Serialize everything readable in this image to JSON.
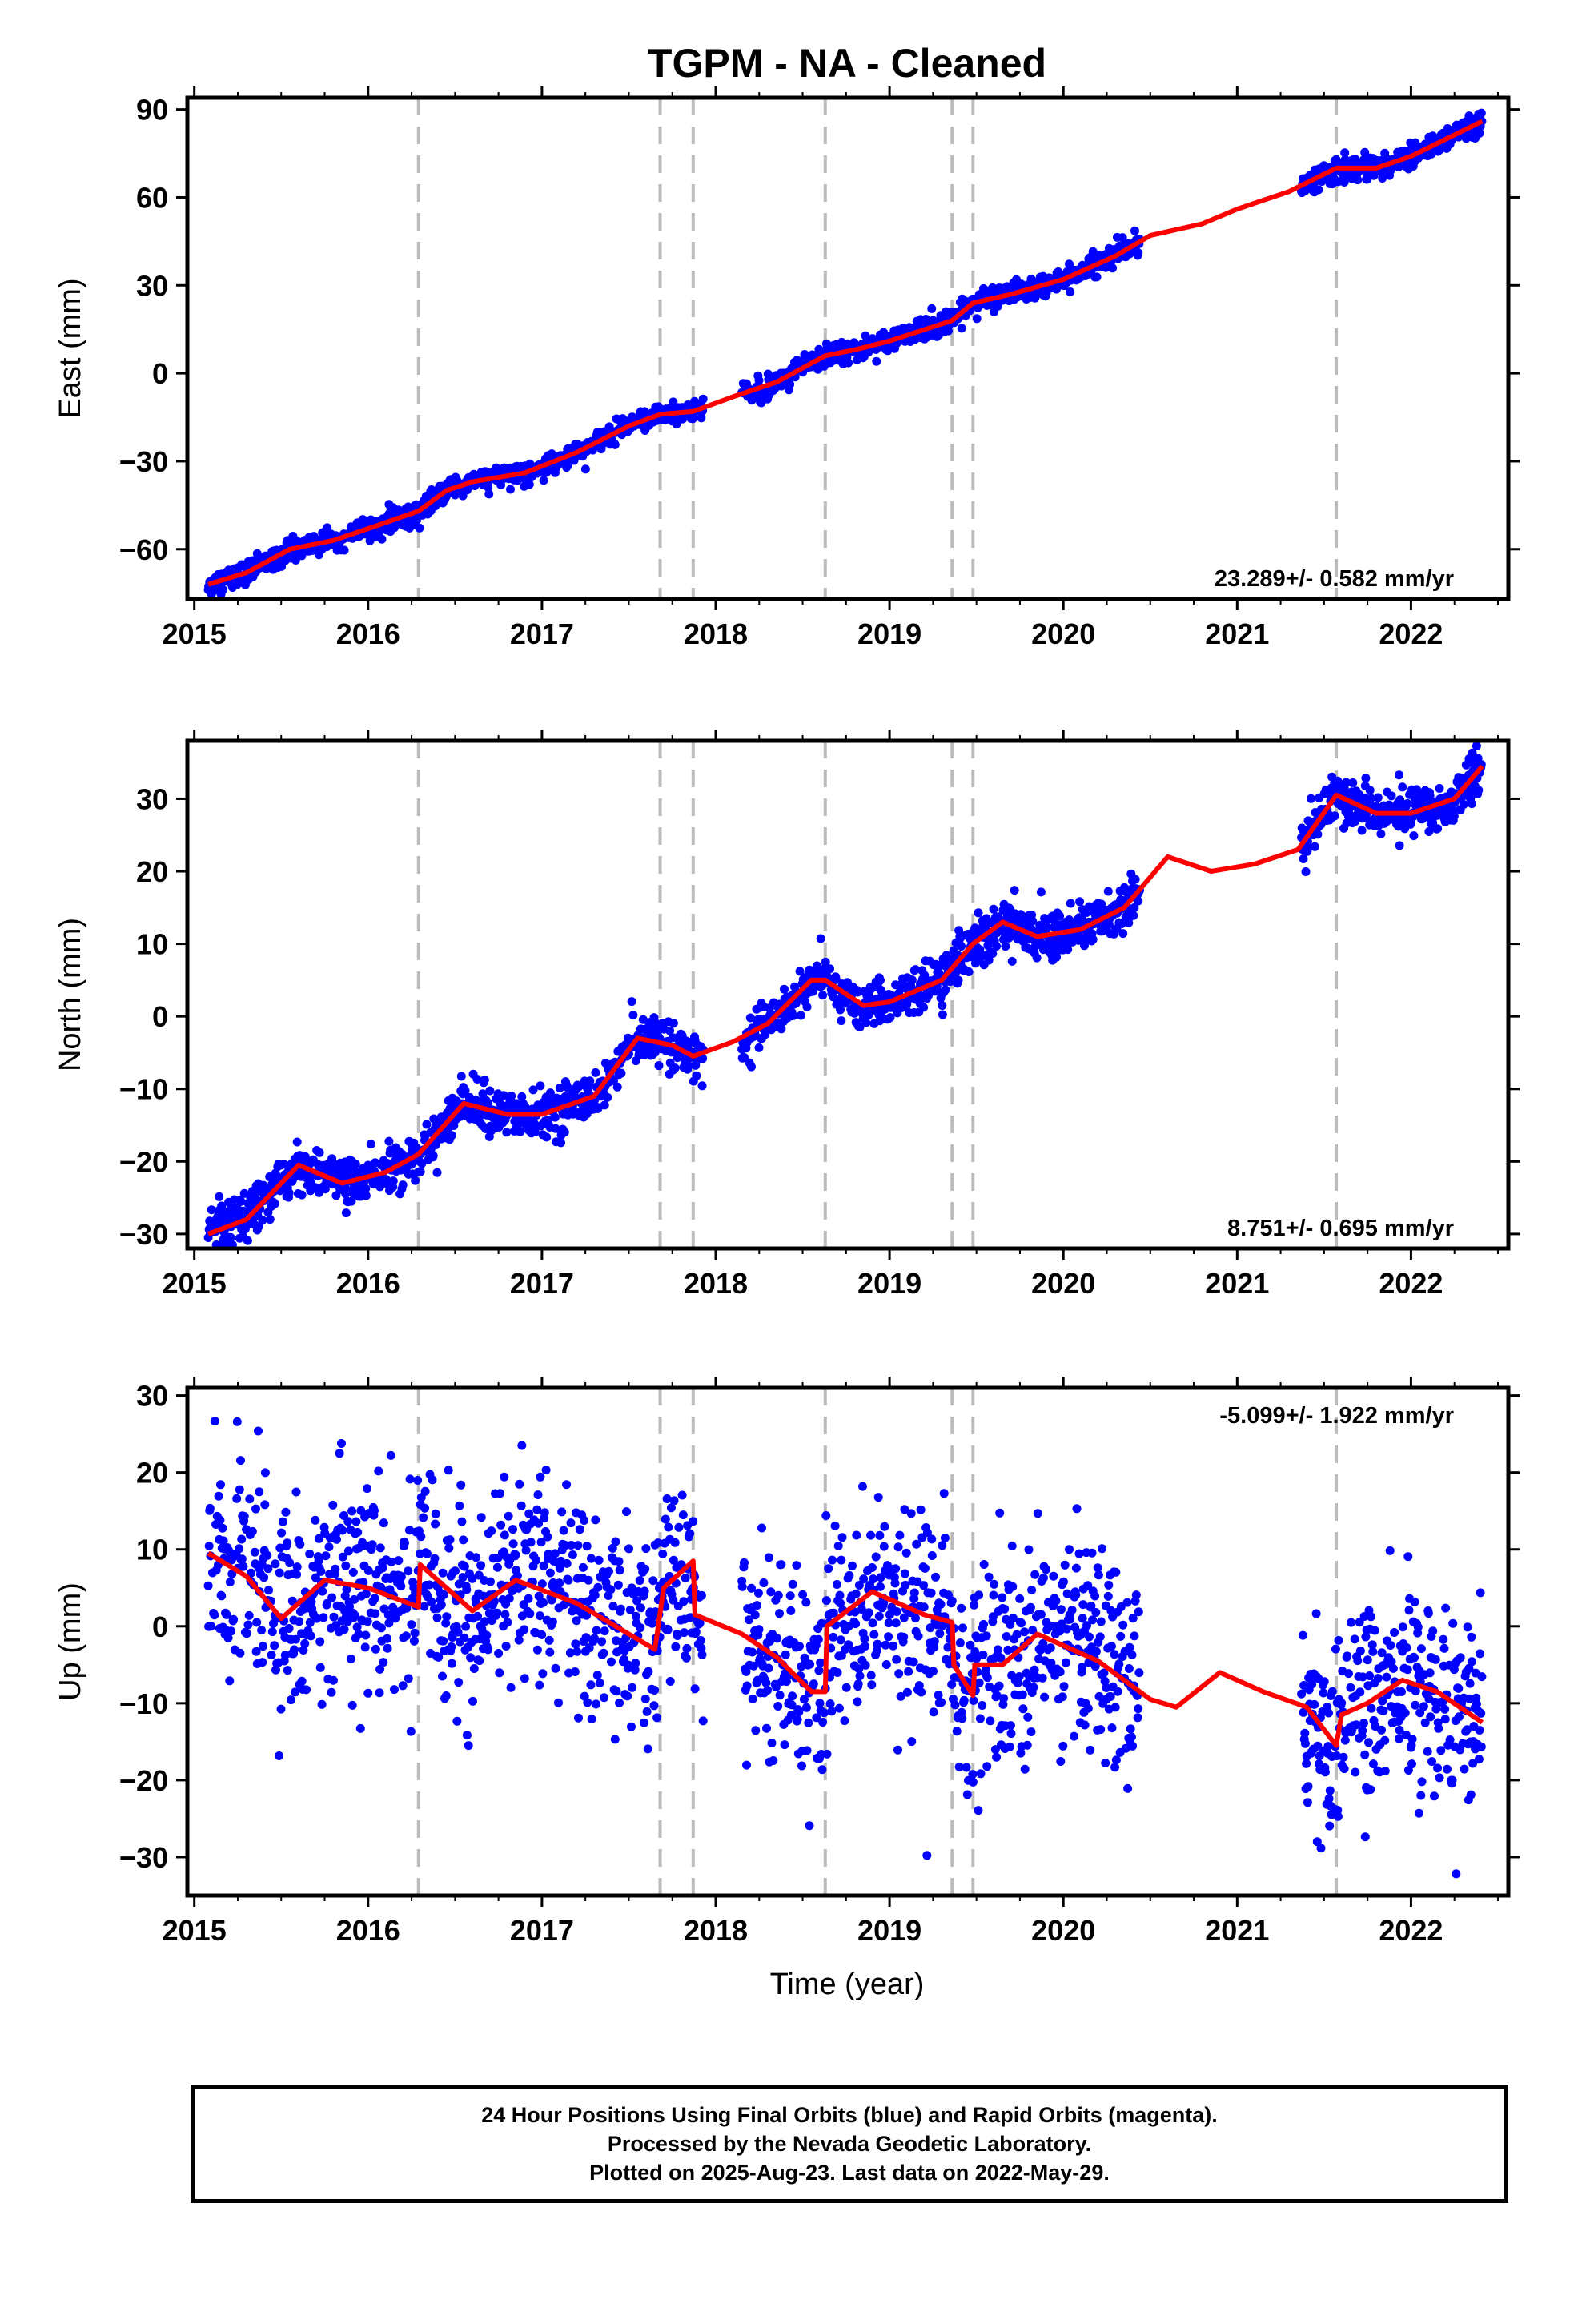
{
  "title": "TGPM  - NA - Cleaned",
  "xlabel": "Time (year)",
  "colors": {
    "data": "#0000ff",
    "model": "#ff0000",
    "steps": "#bbbbbb",
    "frame": "#000000"
  },
  "caption": [
    "24 Hour Positions Using Final Orbits (blue) and Rapid Orbits (magenta).",
    "Processed by the Nevada Geodetic Laboratory.",
    "Plotted on 2025-Aug-23. Last data on 2022-May-29."
  ],
  "chart_data": [
    {
      "type": "scatter",
      "component": "East",
      "ylabel": "East (mm)",
      "xlim": [
        2014.96,
        2022.56
      ],
      "ylim": [
        -77,
        94
      ],
      "xticks": [
        2015,
        2016,
        2017,
        2018,
        2019,
        2020,
        2021,
        2022
      ],
      "yticks": [
        -60,
        -30,
        0,
        30,
        60,
        90
      ],
      "y_tick_labels": [
        "−60",
        "−30",
        "0",
        "30",
        "60",
        "90"
      ],
      "steps": [
        2016.29,
        2017.68,
        2017.87,
        2018.63,
        2019.36,
        2019.48
      ],
      "steps_late": [
        2021.57
      ],
      "velocity_label": "23.289+/- 0.582 mm/yr",
      "label_position": "bottom-right",
      "data_segments": [
        [
          2015.08,
          2017.93
        ],
        [
          2018.15,
          2020.44
        ],
        [
          2021.37,
          2022.41
        ]
      ],
      "noise": 1.8,
      "model": [
        [
          2015.08,
          -72
        ],
        [
          2015.3,
          -68
        ],
        [
          2015.55,
          -60
        ],
        [
          2015.8,
          -57
        ],
        [
          2016.0,
          -53
        ],
        [
          2016.29,
          -47
        ],
        [
          2016.45,
          -40
        ],
        [
          2016.6,
          -37
        ],
        [
          2016.9,
          -34
        ],
        [
          2017.2,
          -27
        ],
        [
          2017.5,
          -18
        ],
        [
          2017.68,
          -14
        ],
        [
          2017.87,
          -13
        ],
        [
          2018.1,
          -8
        ],
        [
          2018.35,
          -3
        ],
        [
          2018.63,
          6
        ],
        [
          2018.8,
          8
        ],
        [
          2019.0,
          11
        ],
        [
          2019.36,
          18
        ],
        [
          2019.48,
          24
        ],
        [
          2019.7,
          27
        ],
        [
          2020.0,
          32
        ],
        [
          2020.3,
          40
        ],
        [
          2020.5,
          47
        ],
        [
          2020.8,
          51
        ],
        [
          2021.0,
          56
        ],
        [
          2021.3,
          62
        ],
        [
          2021.57,
          70
        ],
        [
          2021.8,
          70
        ],
        [
          2022.0,
          74
        ],
        [
          2022.41,
          86
        ]
      ]
    },
    {
      "type": "scatter",
      "component": "North",
      "ylabel": "North (mm)",
      "xlim": [
        2014.96,
        2022.56
      ],
      "ylim": [
        -32,
        38
      ],
      "xticks": [
        2015,
        2016,
        2017,
        2018,
        2019,
        2020,
        2021,
        2022
      ],
      "yticks": [
        -30,
        -20,
        -10,
        0,
        10,
        20,
        30
      ],
      "y_tick_labels": [
        "−30",
        "−20",
        "−10",
        "0",
        "10",
        "20",
        "30"
      ],
      "steps": [
        2016.29,
        2017.68,
        2017.87,
        2018.63,
        2019.36,
        2019.48
      ],
      "steps_late": [
        2021.57
      ],
      "velocity_label": "8.751+/- 0.695 mm/yr",
      "label_position": "bottom-right",
      "data_segments": [
        [
          2015.08,
          2017.93
        ],
        [
          2018.15,
          2020.44
        ],
        [
          2021.37,
          2022.41
        ]
      ],
      "noise": 1.6,
      "model": [
        [
          2015.08,
          -30
        ],
        [
          2015.3,
          -28
        ],
        [
          2015.6,
          -20.5
        ],
        [
          2015.85,
          -23
        ],
        [
          2016.1,
          -21.5
        ],
        [
          2016.29,
          -19
        ],
        [
          2016.55,
          -12
        ],
        [
          2016.8,
          -13.5
        ],
        [
          2017.0,
          -13.5
        ],
        [
          2017.3,
          -11
        ],
        [
          2017.55,
          -3
        ],
        [
          2017.75,
          -4
        ],
        [
          2017.87,
          -5.5
        ],
        [
          2018.1,
          -3.5
        ],
        [
          2018.3,
          -1
        ],
        [
          2018.55,
          5
        ],
        [
          2018.63,
          5
        ],
        [
          2018.85,
          1.5
        ],
        [
          2019.0,
          2
        ],
        [
          2019.3,
          5
        ],
        [
          2019.48,
          10
        ],
        [
          2019.65,
          13
        ],
        [
          2019.85,
          11
        ],
        [
          2020.1,
          12
        ],
        [
          2020.35,
          15
        ],
        [
          2020.6,
          22
        ],
        [
          2020.85,
          20
        ],
        [
          2021.1,
          21
        ],
        [
          2021.35,
          23
        ],
        [
          2021.57,
          30.5
        ],
        [
          2021.8,
          28
        ],
        [
          2022.0,
          28
        ],
        [
          2022.25,
          30
        ],
        [
          2022.41,
          34.5
        ]
      ]
    },
    {
      "type": "scatter",
      "component": "Up",
      "ylabel": "Up (mm)",
      "xlim": [
        2014.96,
        2022.56
      ],
      "ylim": [
        -35,
        31
      ],
      "xticks": [
        2015,
        2016,
        2017,
        2018,
        2019,
        2020,
        2021,
        2022
      ],
      "yticks": [
        -30,
        -20,
        -10,
        0,
        10,
        20,
        30
      ],
      "y_tick_labels": [
        "−30",
        "−20",
        "−10",
        "0",
        "10",
        "20",
        "30"
      ],
      "steps": [
        2016.29,
        2017.68,
        2017.87,
        2018.63,
        2019.36,
        2019.48
      ],
      "steps_late": [
        2021.57
      ],
      "velocity_label": "-5.099+/- 1.922 mm/yr",
      "label_position": "top-right",
      "data_segments": [
        [
          2015.08,
          2017.93
        ],
        [
          2018.15,
          2020.44
        ],
        [
          2021.37,
          2022.41
        ]
      ],
      "noise": 6.5,
      "model": [
        [
          2015.08,
          9.5
        ],
        [
          2015.3,
          6.5
        ],
        [
          2015.5,
          1
        ],
        [
          2015.75,
          6
        ],
        [
          2016.0,
          5
        ],
        [
          2016.29,
          2.5
        ],
        [
          2016.3,
          8
        ],
        [
          2016.6,
          2
        ],
        [
          2016.85,
          6
        ],
        [
          2017.2,
          3
        ],
        [
          2017.5,
          -1
        ],
        [
          2017.65,
          -3
        ],
        [
          2017.7,
          5
        ],
        [
          2017.87,
          8.5
        ],
        [
          2017.88,
          1.5
        ],
        [
          2018.15,
          -1
        ],
        [
          2018.35,
          -4
        ],
        [
          2018.55,
          -8.5
        ],
        [
          2018.63,
          -8.5
        ],
        [
          2018.64,
          0
        ],
        [
          2018.9,
          4.5
        ],
        [
          2019.2,
          1.5
        ],
        [
          2019.36,
          0.5
        ],
        [
          2019.37,
          -5
        ],
        [
          2019.48,
          -9
        ],
        [
          2019.49,
          -5
        ],
        [
          2019.65,
          -5
        ],
        [
          2019.85,
          -1
        ],
        [
          2020.2,
          -4.5
        ],
        [
          2020.5,
          -9.5
        ],
        [
          2020.65,
          -10.5
        ],
        [
          2020.9,
          -6
        ],
        [
          2021.15,
          -8.5
        ],
        [
          2021.4,
          -10.5
        ],
        [
          2021.57,
          -15.5
        ],
        [
          2021.6,
          -11.5
        ],
        [
          2021.75,
          -10
        ],
        [
          2021.95,
          -7
        ],
        [
          2022.15,
          -8.5
        ],
        [
          2022.41,
          -12.5
        ]
      ]
    }
  ]
}
